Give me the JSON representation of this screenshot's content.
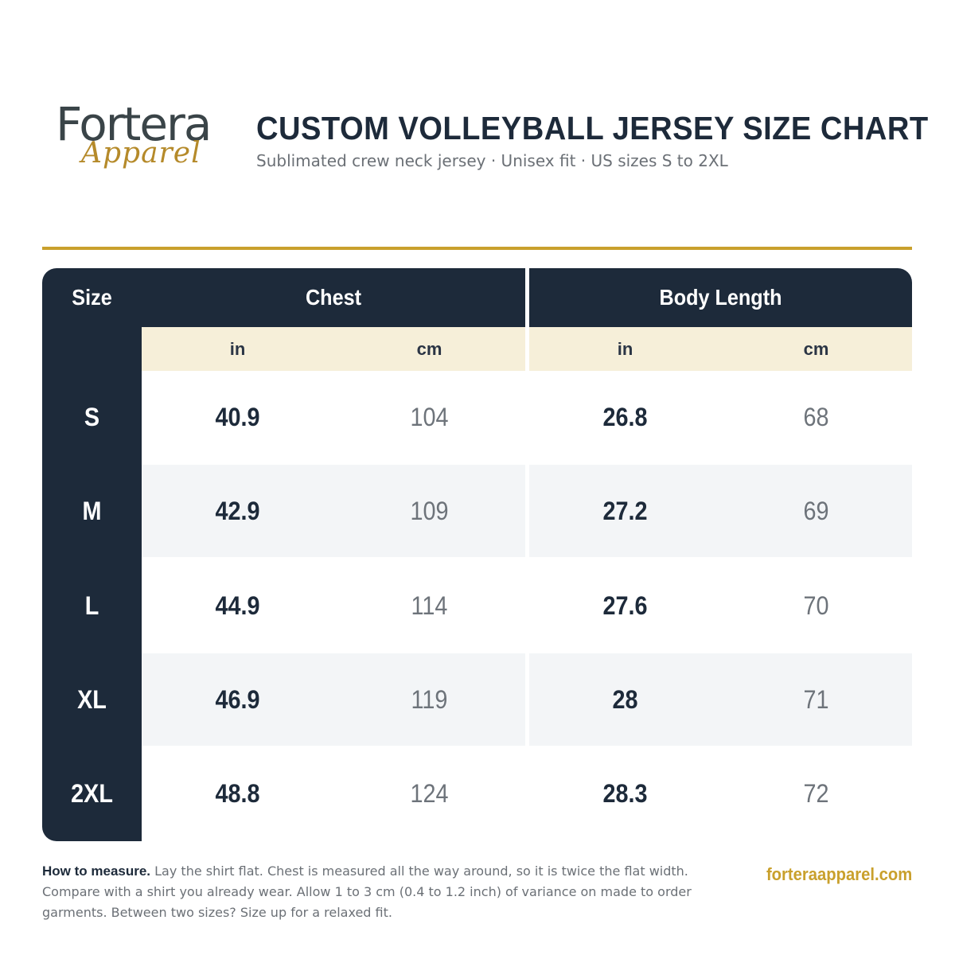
{
  "brand": {
    "logo_word": "Fortera",
    "logo_script": "Apparel",
    "website": "forteraapparel.com",
    "colors": {
      "navy": "#1d2a3a",
      "gold": "#c9a02c",
      "cream": "#f6efd9",
      "alt_row": "#f3f5f7"
    }
  },
  "header": {
    "title": "CUSTOM VOLLEYBALL JERSEY SIZE CHART",
    "subtitle": "Sublimated crew neck jersey · Unisex fit · US sizes S to 2XL"
  },
  "table": {
    "size_header": "Size",
    "groups": [
      {
        "label": "Chest",
        "units": [
          "in",
          "cm"
        ]
      },
      {
        "label": "Body Length",
        "units": [
          "in",
          "cm"
        ]
      }
    ],
    "rows": [
      {
        "size": "S",
        "chest_in": "40.9",
        "chest_cm": "104",
        "length_in": "26.8",
        "length_cm": "68"
      },
      {
        "size": "M",
        "chest_in": "42.9",
        "chest_cm": "109",
        "length_in": "27.2",
        "length_cm": "69"
      },
      {
        "size": "L",
        "chest_in": "44.9",
        "chest_cm": "114",
        "length_in": "27.6",
        "length_cm": "70"
      },
      {
        "size": "XL",
        "chest_in": "46.9",
        "chest_cm": "119",
        "length_in": "28",
        "length_cm": "71"
      },
      {
        "size": "2XL",
        "chest_in": "48.8",
        "chest_cm": "124",
        "length_in": "28.3",
        "length_cm": "72"
      }
    ]
  },
  "footer": {
    "note_label": "How to measure.",
    "note_text": "Lay the shirt flat. Chest is measured all the way around, so it is twice the flat width. Compare with a shirt you already wear. Allow 1 to 3 cm (0.4 to 1.2 inch) of variance on made to order garments. Between two sizes? Size up for a relaxed fit."
  }
}
